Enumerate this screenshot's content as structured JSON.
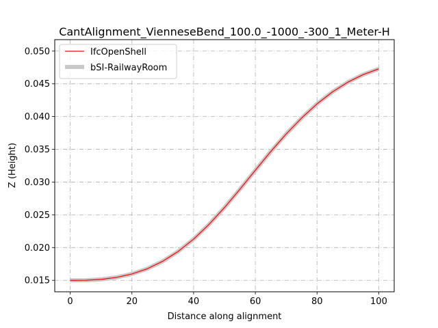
{
  "chart_data": {
    "type": "line",
    "title": "CantAlignment_VienneseBend_100.0_-1000_-300_1_Meter-H",
    "xlabel": "Distance along alignment",
    "ylabel": "Z (Height)",
    "xlim": [
      -5,
      105
    ],
    "ylim": [
      0.01325,
      0.05175
    ],
    "xticks": [
      0,
      20,
      40,
      60,
      80,
      100
    ],
    "xtick_labels": [
      "0",
      "20",
      "40",
      "60",
      "80",
      "100"
    ],
    "yticks": [
      0.015,
      0.02,
      0.025,
      0.03,
      0.035,
      0.04,
      0.045,
      0.05
    ],
    "ytick_labels": [
      "0.015",
      "0.020",
      "0.025",
      "0.030",
      "0.035",
      "0.040",
      "0.045",
      "0.050"
    ],
    "grid": true,
    "legend_position": "top-left",
    "series": [
      {
        "name": "IfcOpenShell",
        "color": "#ff0000",
        "x": [
          0,
          5,
          10,
          15,
          20,
          25,
          30,
          35,
          40,
          45,
          50,
          55,
          60,
          65,
          70,
          75,
          80,
          85,
          90,
          95,
          100
        ],
        "y": [
          0.015,
          0.01501,
          0.01514,
          0.01545,
          0.01597,
          0.01677,
          0.01791,
          0.01941,
          0.02129,
          0.02354,
          0.0261,
          0.0289,
          0.0318,
          0.03466,
          0.03734,
          0.03978,
          0.04194,
          0.04377,
          0.04526,
          0.04642,
          0.04729
        ]
      },
      {
        "name": "bSI-RailwayRoom",
        "color": "#c8c8c8",
        "x": [
          0,
          5,
          10,
          15,
          20,
          25,
          30,
          35,
          40,
          45,
          50,
          55,
          60,
          65,
          70,
          75,
          80,
          85,
          90,
          95,
          100
        ],
        "y": [
          0.015,
          0.01501,
          0.01514,
          0.01545,
          0.01597,
          0.01677,
          0.01791,
          0.01941,
          0.02129,
          0.02354,
          0.0261,
          0.0289,
          0.0318,
          0.03466,
          0.03734,
          0.03978,
          0.04194,
          0.04377,
          0.04526,
          0.04642,
          0.04729
        ]
      }
    ]
  }
}
